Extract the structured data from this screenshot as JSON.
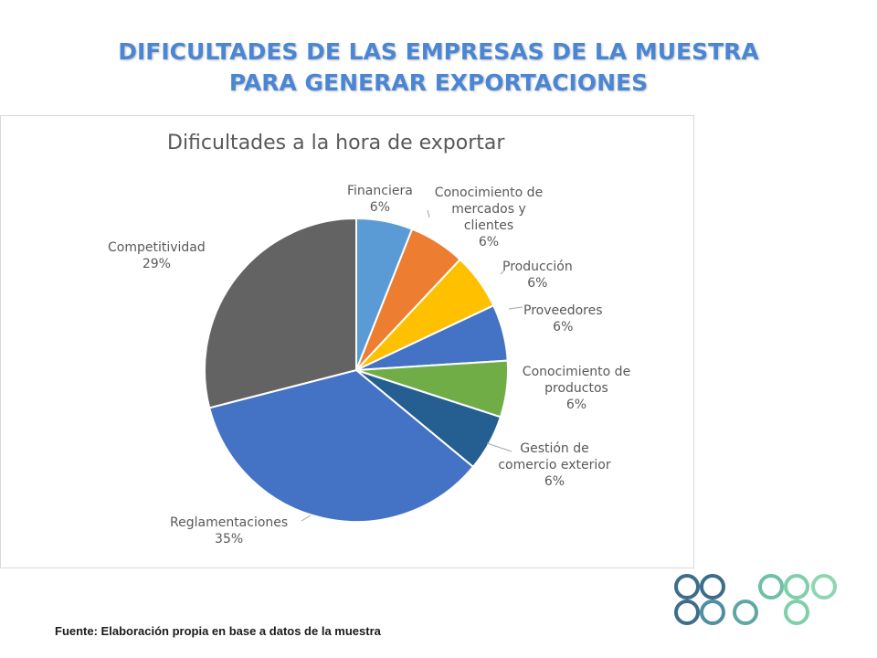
{
  "slide": {
    "title_line1": "DIFICULTADES DE LAS EMPRESAS DE LA MUESTRA",
    "title_line2": "PARA GENERAR EXPORTACIONES",
    "source": "Fuente: Elaboración propia en base a datos de la muestra",
    "title_color": "#4a86d4"
  },
  "chart_data": {
    "type": "pie",
    "title": "Dificultades a la hora de exportar",
    "slices": [
      {
        "label": "Financiera",
        "pct_label": "6%",
        "value": 6,
        "color": "#5b9bd5"
      },
      {
        "label": "Conocimiento de mercados y clientes",
        "pct_label": "6%",
        "value": 6,
        "color": "#ed7d31"
      },
      {
        "label": "Producción",
        "pct_label": "6%",
        "value": 6,
        "color": "#ffc000"
      },
      {
        "label": "Proveedores",
        "pct_label": "6%",
        "value": 6,
        "color": "#4472c4"
      },
      {
        "label": "Conocimiento de productos",
        "pct_label": "6%",
        "value": 6,
        "color": "#70ad47"
      },
      {
        "label": "Gestión de comercio exterior",
        "pct_label": "6%",
        "value": 6,
        "color": "#255e91"
      },
      {
        "label": "Reglamentaciones",
        "pct_label": "35%",
        "value": 35,
        "color": "#4472c4"
      },
      {
        "label": "Competitividad",
        "pct_label": "29%",
        "value": 29,
        "color": "#636363"
      }
    ],
    "legend": "none",
    "data_labels": "outside with leader lines"
  }
}
